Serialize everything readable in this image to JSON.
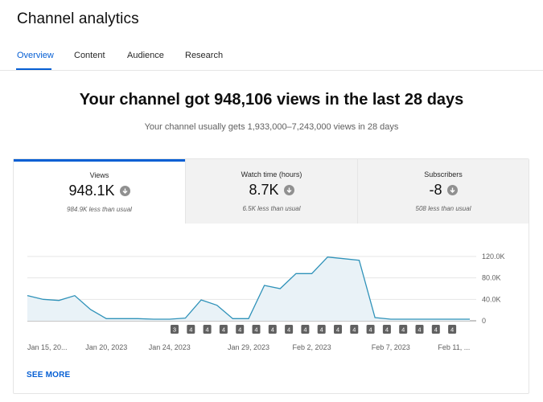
{
  "page": {
    "title": "Channel analytics"
  },
  "tabs": [
    {
      "label": "Overview",
      "active": true
    },
    {
      "label": "Content",
      "active": false
    },
    {
      "label": "Audience",
      "active": false
    },
    {
      "label": "Research",
      "active": false
    }
  ],
  "summary": {
    "headline": "Your channel got 948,106 views in the last 28 days",
    "subline": "Your channel usually gets 1,933,000–7,243,000 views in 28 days"
  },
  "metrics": [
    {
      "label": "Views",
      "value": "948.1K",
      "note": "984.9K less than usual",
      "trend_icon": "arrow-down-icon",
      "active": true
    },
    {
      "label": "Watch time (hours)",
      "value": "8.7K",
      "note": "6.5K less than usual",
      "trend_icon": "arrow-down-icon",
      "active": false
    },
    {
      "label": "Subscribers",
      "value": "-8",
      "note": "508 less than usual",
      "trend_icon": "arrow-down-icon",
      "active": false
    }
  ],
  "chart_data": {
    "type": "area",
    "title": "Views",
    "series": [
      {
        "name": "Views",
        "values": [
          47000,
          40000,
          38000,
          47000,
          21000,
          4000,
          4000,
          4000,
          3000,
          3000,
          5000,
          39000,
          29000,
          4000,
          4000,
          66000,
          60000,
          88000,
          88000,
          119000,
          116000,
          113000,
          6000,
          3000,
          3000,
          3000,
          3000,
          3000,
          3000
        ]
      }
    ],
    "ylim": [
      0,
      120000
    ],
    "y_ticks": [
      "120.0K",
      "80.0K",
      "40.0K",
      "0"
    ],
    "y_tick_values": [
      120000,
      80000,
      40000,
      0
    ],
    "x_labels": [
      {
        "label": "Jan 15, 20...",
        "index": 0
      },
      {
        "label": "Jan 20, 2023",
        "index": 5
      },
      {
        "label": "Jan 24, 2023",
        "index": 9
      },
      {
        "label": "Jan 29, 2023",
        "index": 14
      },
      {
        "label": "Feb 2, 2023",
        "index": 18
      },
      {
        "label": "Feb 7, 2023",
        "index": 23
      },
      {
        "label": "Feb 11, ...",
        "index": 27
      }
    ],
    "markers": [
      "3",
      "4",
      "4",
      "4",
      "4",
      "4",
      "4",
      "4",
      "4",
      "4",
      "4",
      "4",
      "4",
      "4",
      "4",
      "4",
      "4",
      "4"
    ],
    "line_color": "#2f92b9",
    "fill_color": "#e9f2f7",
    "grid": true
  },
  "footer": {
    "see_more": "SEE MORE"
  }
}
